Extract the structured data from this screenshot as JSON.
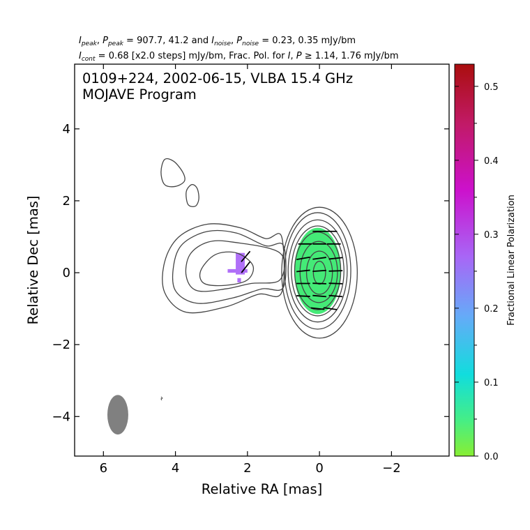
{
  "header": {
    "line1": {
      "i_sym": "I",
      "i_sub": "peak",
      "p_sym": "P",
      "p_sub": "peak",
      "vals": " = 907.7, 41.2 and ",
      "i2_sym": "I",
      "i2_sub": "noise",
      "p2_sym": "P",
      "p2_sub": "noise",
      "vals2": " = 0.23, 0.35 mJy/bm"
    },
    "line2": {
      "i_sym": "I",
      "i_sub": "cont",
      "text": " = 0.68 [x2.0 steps] mJy/bm, Frac. Pol. for ",
      "i_sym2": "I",
      "sep": ", ",
      "p_sym": "P",
      "geq": " ≥ 1.14, 1.76 mJy/bm"
    }
  },
  "chart_data": {
    "type": "contour",
    "title": "0109+224, 2002-06-15, VLBA 15.4 GHz",
    "subtitle": "MOJAVE Program",
    "xlabel": "Relative RA [mas]",
    "ylabel": "Relative Dec [mas]",
    "xlim": [
      6.8,
      -3.6
    ],
    "ylim": [
      -5.1,
      5.8
    ],
    "x_ticks": [
      6,
      4,
      2,
      0,
      -2
    ],
    "x_tick_labels": [
      "6",
      "4",
      "2",
      "0",
      "−2"
    ],
    "y_ticks": [
      4,
      2,
      0,
      -2,
      -4
    ],
    "y_tick_labels": [
      "4",
      "2",
      "0",
      "−2",
      "−4"
    ],
    "core_contours": [
      {
        "x": 0.0,
        "y": 0.0,
        "a": 1.05,
        "b": 1.82
      },
      {
        "x": 0.05,
        "y": 0.05,
        "a": 0.92,
        "b": 1.62
      },
      {
        "x": 0.05,
        "y": 0.05,
        "a": 0.82,
        "b": 1.42
      },
      {
        "x": 0.05,
        "y": 0.05,
        "a": 0.73,
        "b": 1.25
      },
      {
        "x": 0.05,
        "y": 0.05,
        "a": 0.64,
        "b": 1.08
      },
      {
        "x": 0.02,
        "y": 0.02,
        "a": 0.52,
        "b": 0.85
      },
      {
        "x": 0.0,
        "y": 0.0,
        "a": 0.36,
        "b": 0.6
      },
      {
        "x": 0.0,
        "y": 0.0,
        "a": 0.17,
        "b": 0.32
      }
    ],
    "jet_contours": [
      [
        [
          1.05,
          1.0
        ],
        [
          1.5,
          0.95
        ],
        [
          2.2,
          1.25
        ],
        [
          3.1,
          1.35
        ],
        [
          3.9,
          1.0
        ],
        [
          4.3,
          0.3
        ],
        [
          4.3,
          -0.55
        ],
        [
          3.7,
          -1.1
        ],
        [
          2.6,
          -0.95
        ],
        [
          1.7,
          -0.6
        ],
        [
          1.05,
          -0.55
        ]
      ],
      [
        [
          1.0,
          0.75
        ],
        [
          1.5,
          0.75
        ],
        [
          2.3,
          1.1
        ],
        [
          3.1,
          1.15
        ],
        [
          3.8,
          0.8
        ],
        [
          4.05,
          0.2
        ],
        [
          4.0,
          -0.5
        ],
        [
          3.4,
          -0.85
        ],
        [
          2.4,
          -0.7
        ],
        [
          1.6,
          -0.45
        ],
        [
          1.0,
          -0.4
        ]
      ],
      [
        [
          1.1,
          0.55
        ],
        [
          2.4,
          0.85
        ],
        [
          3.1,
          0.85
        ],
        [
          3.6,
          0.5
        ],
        [
          3.7,
          -0.1
        ],
        [
          3.4,
          -0.5
        ],
        [
          2.6,
          -0.45
        ],
        [
          1.9,
          -0.3
        ],
        [
          1.1,
          -0.2
        ]
      ],
      [
        [
          1.85,
          0.2
        ],
        [
          2.3,
          0.55
        ],
        [
          2.9,
          0.5
        ],
        [
          3.3,
          0.05
        ],
        [
          3.2,
          -0.3
        ],
        [
          2.6,
          -0.35
        ],
        [
          2.0,
          -0.2
        ]
      ]
    ],
    "isolated_contours": [
      [
        [
          4.3,
          3.15
        ],
        [
          4.05,
          3.1
        ],
        [
          3.8,
          2.8
        ],
        [
          3.75,
          2.55
        ],
        [
          4.0,
          2.4
        ],
        [
          4.3,
          2.45
        ],
        [
          4.4,
          2.8
        ]
      ],
      [
        [
          3.55,
          2.45
        ],
        [
          3.4,
          2.35
        ],
        [
          3.35,
          2.05
        ],
        [
          3.45,
          1.85
        ],
        [
          3.65,
          1.9
        ],
        [
          3.7,
          2.25
        ]
      ]
    ],
    "polarization_regions": [
      {
        "x": 0.05,
        "y": 0.05,
        "a": 0.65,
        "b": 1.2,
        "frac_pol": 0.06
      },
      {
        "x": 2.2,
        "y": 0.25,
        "w": 0.25,
        "h": 0.6,
        "frac_pol": 0.27
      }
    ],
    "evpa_vectors": [
      {
        "x": 0.0,
        "y": 1.15,
        "angle": 90
      },
      {
        "x": -0.3,
        "y": 1.15,
        "angle": 90
      },
      {
        "x": -0.4,
        "y": 0.8,
        "angle": 90
      },
      {
        "x": 0.0,
        "y": 0.8,
        "angle": 90
      },
      {
        "x": 0.4,
        "y": 0.8,
        "angle": 90
      },
      {
        "x": -0.45,
        "y": 0.4,
        "angle": 84
      },
      {
        "x": 0.0,
        "y": 0.4,
        "angle": 82
      },
      {
        "x": 0.45,
        "y": 0.4,
        "angle": 80
      },
      {
        "x": -0.45,
        "y": 0.05,
        "angle": 88
      },
      {
        "x": 0.0,
        "y": 0.05,
        "angle": 86
      },
      {
        "x": 0.45,
        "y": 0.05,
        "angle": 84
      },
      {
        "x": -0.45,
        "y": -0.3,
        "angle": 92
      },
      {
        "x": 0.0,
        "y": -0.3,
        "angle": 92
      },
      {
        "x": 0.45,
        "y": -0.3,
        "angle": 90
      },
      {
        "x": -0.45,
        "y": -0.65,
        "angle": 95
      },
      {
        "x": 0.0,
        "y": -0.65,
        "angle": 95
      },
      {
        "x": 0.45,
        "y": -0.65,
        "angle": 93
      },
      {
        "x": -0.3,
        "y": -1.0,
        "angle": 98
      },
      {
        "x": 0.05,
        "y": -1.0,
        "angle": 96
      },
      {
        "x": 2.05,
        "y": 0.45,
        "angle": 40
      },
      {
        "x": 2.05,
        "y": 0.15,
        "angle": 38
      }
    ],
    "beam": {
      "x": 5.6,
      "y": -3.95,
      "major": 1.1,
      "minor": 0.58,
      "pa_deg": 0
    },
    "colorbar": {
      "label": "Fractional Linear Polarization",
      "range": [
        0.0,
        0.53
      ],
      "ticks": [
        0.0,
        0.1,
        0.2,
        0.3,
        0.4,
        0.5
      ],
      "tick_labels": [
        "0.0",
        "0.1",
        "0.2",
        "0.3",
        "0.4",
        "0.5"
      ],
      "stops": [
        {
          "v": 0.0,
          "color": "#88ee33"
        },
        {
          "v": 0.05,
          "color": "#44ee88"
        },
        {
          "v": 0.11,
          "color": "#11dddd"
        },
        {
          "v": 0.19,
          "color": "#66aaf8"
        },
        {
          "v": 0.27,
          "color": "#a866f6"
        },
        {
          "v": 0.36,
          "color": "#cc11cc"
        },
        {
          "v": 0.45,
          "color": "#c11a66"
        },
        {
          "v": 0.53,
          "color": "#aa0e0e"
        }
      ]
    },
    "colors": {
      "contour": "#444444",
      "vector": "#000000",
      "beam": "#808080",
      "core_pol": "#44ea77",
      "knot_pol": "#b070f8"
    }
  }
}
